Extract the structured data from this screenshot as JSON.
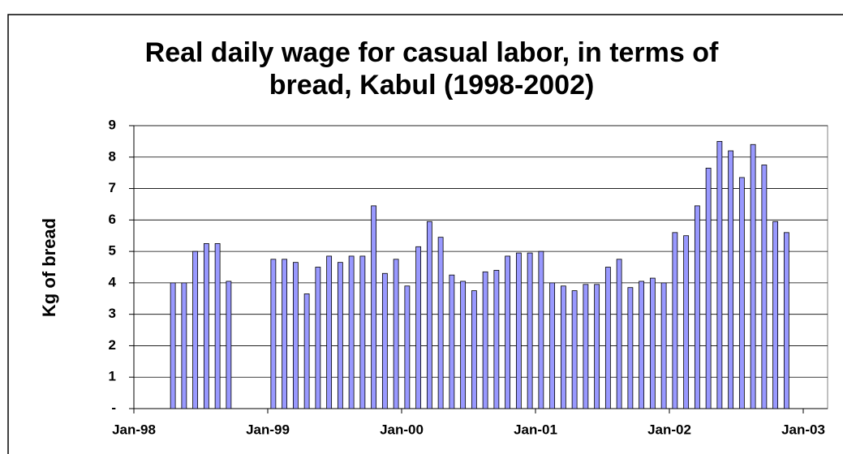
{
  "chart_data": {
    "type": "bar",
    "title": [
      "Real daily wage for casual labor, in terms of",
      "bread, Kabul (1998-2002)"
    ],
    "y_label": "Kg of bread",
    "categories": [
      null,
      null,
      null,
      null,
      null,
      null,
      null,
      null,
      null,
      null,
      null,
      null,
      null,
      null,
      null,
      null,
      null,
      null,
      null,
      null,
      null,
      null,
      null,
      null,
      null,
      null,
      null,
      null,
      null,
      null,
      null,
      null,
      null,
      null,
      null,
      null,
      null,
      null,
      null,
      null,
      null,
      null,
      null,
      null,
      null,
      null,
      null,
      null,
      null,
      null,
      null,
      null,
      null,
      null,
      null,
      null,
      null,
      null,
      null,
      null
    ],
    "values": [
      null,
      null,
      null,
      4.0,
      4.0,
      5.0,
      5.25,
      5.25,
      4.05,
      null,
      null,
      null,
      4.75,
      4.75,
      4.65,
      3.65,
      4.5,
      4.85,
      4.65,
      4.85,
      4.85,
      6.45,
      4.3,
      4.75,
      3.9,
      5.15,
      5.95,
      5.45,
      4.25,
      4.05,
      3.75,
      4.35,
      4.4,
      4.85,
      4.95,
      4.95,
      5.0,
      4.0,
      3.9,
      3.75,
      3.95,
      3.95,
      4.5,
      4.75,
      3.85,
      4.05,
      4.15,
      4.0,
      5.6,
      5.5,
      6.45,
      7.65,
      8.5,
      8.2,
      7.35,
      8.4,
      7.75,
      5.95,
      5.6,
      null
    ],
    "xtick_labels": [
      "Jan-98",
      "Jan-99",
      "Jan-00",
      "Jan-01",
      "Jan-02",
      "Jan-03"
    ],
    "color": "#9999ff",
    "ylim": [
      0,
      9
    ],
    "yticks": [
      {
        "value": 0,
        "label": "-"
      },
      1,
      2,
      3,
      4,
      5,
      6,
      7,
      8,
      9
    ],
    "grid": true
  }
}
